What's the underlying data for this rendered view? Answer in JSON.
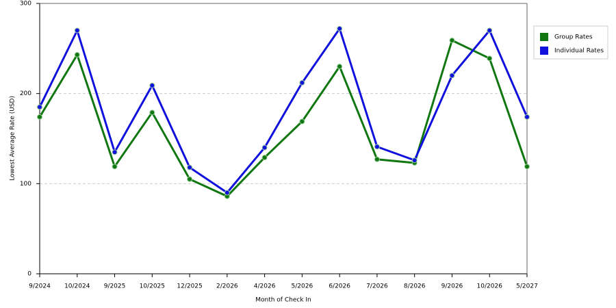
{
  "chart_data": {
    "type": "line",
    "x_label": "Month of Check In",
    "y_label": "Lowest Average Rate (USD)",
    "categories": [
      "9/2024",
      "10/2024",
      "9/2025",
      "10/2025",
      "12/2025",
      "2/2026",
      "4/2026",
      "5/2026",
      "6/2026",
      "7/2026",
      "8/2026",
      "9/2026",
      "10/2026",
      "5/2027"
    ],
    "series": [
      {
        "name": "Group Rates",
        "color": "#117711",
        "values": [
          174,
          243,
          119,
          179,
          105,
          86,
          129,
          169,
          230,
          127,
          123,
          259,
          239,
          119
        ]
      },
      {
        "name": "Individual Rates",
        "color": "#1111dd",
        "values": [
          185,
          270,
          135,
          209,
          118,
          90,
          140,
          212,
          272,
          141,
          126,
          220,
          270,
          174
        ]
      }
    ],
    "ylim": [
      0,
      300
    ],
    "yticks": [
      0,
      100,
      200,
      300
    ],
    "grid": true,
    "legend": "right"
  }
}
